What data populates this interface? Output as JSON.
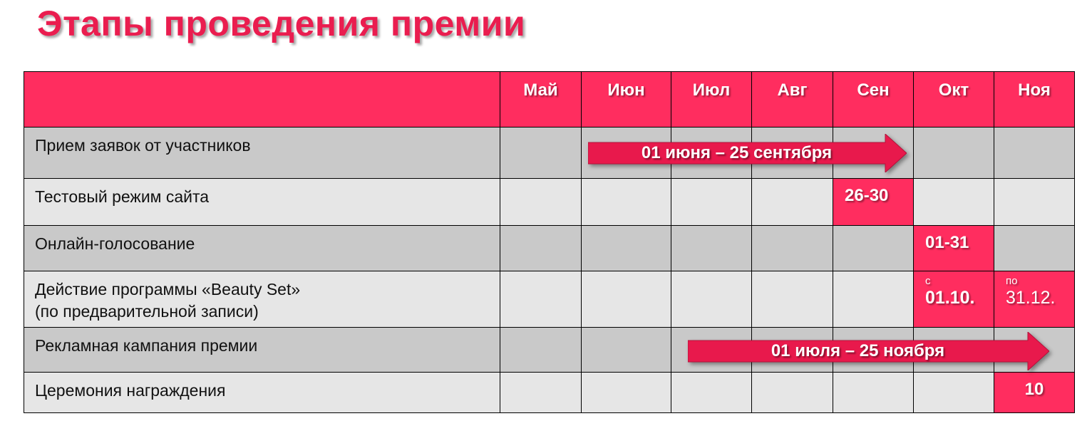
{
  "title": "Этапы проведения премии",
  "colors": {
    "accent": "#ff2d5f",
    "title": "#ea1d4f",
    "row_dark": "#c9c9c9",
    "row_light": "#e6e6e6"
  },
  "months": [
    "Май",
    "Июн",
    "Июл",
    "Авг",
    "Сен",
    "Окт",
    "Ноя"
  ],
  "rows": [
    {
      "label": "Прием заявок от участников",
      "arrow": {
        "text": "01 июня – 25 сентября"
      }
    },
    {
      "label": "Тестовый режим сайта",
      "cells": [
        {
          "month": 4,
          "text": "26-30"
        }
      ]
    },
    {
      "label": "Онлайн-голосование",
      "cells": [
        {
          "month": 5,
          "text": "01-31"
        }
      ]
    },
    {
      "label": "Действие программы «Beauty Set»",
      "label2": "(по предварительной записи)",
      "cells": [
        {
          "month": 5,
          "small": "с",
          "text": "01.10."
        },
        {
          "month": 6,
          "small": "по",
          "text": "31.12."
        }
      ]
    },
    {
      "label": "Рекламная кампания премии",
      "arrow": {
        "text": "01 июля – 25 ноября"
      }
    },
    {
      "label": "Церемония награждения",
      "cells": [
        {
          "month": 6,
          "text": "10",
          "center": true
        }
      ]
    }
  ]
}
